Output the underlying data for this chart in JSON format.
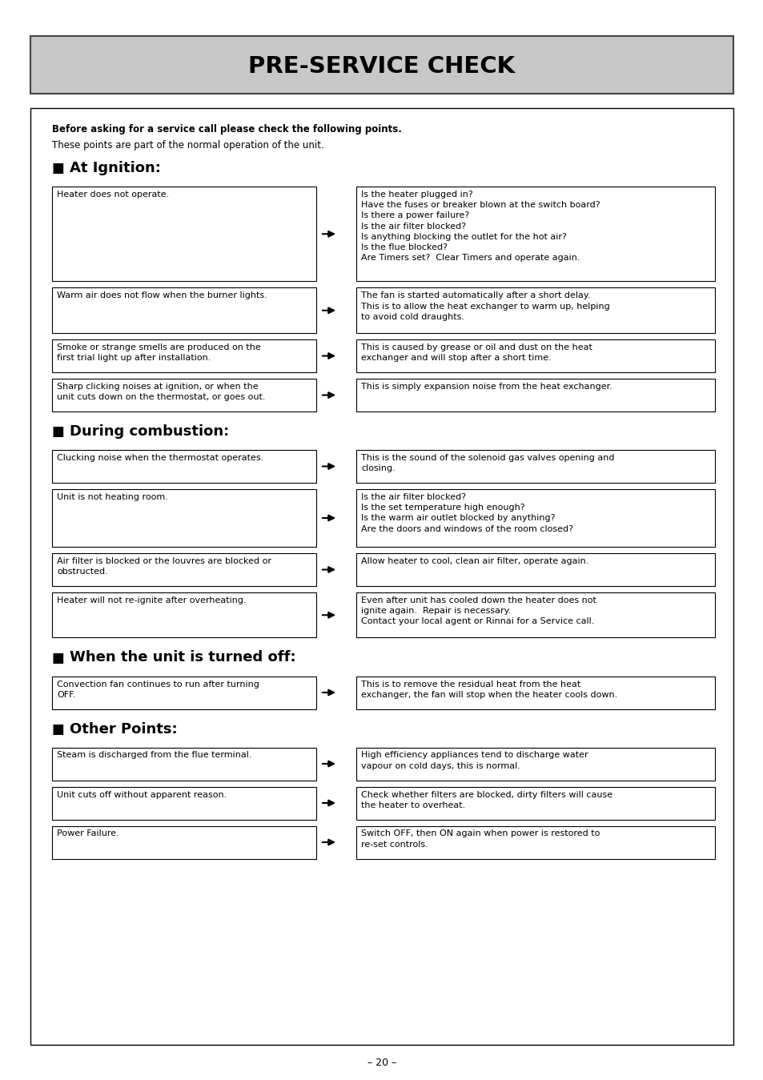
{
  "title": "PRE-SERVICE CHECK",
  "title_bg": "#c8c8c8",
  "page_bg": "#ffffff",
  "intro_bold": "Before asking for a service call please check the following points.",
  "intro_normal": "These points are part of the normal operation of the unit.",
  "sections": [
    {
      "heading": "At Ignition:",
      "rows": [
        {
          "left": "Heater does not operate.",
          "right": "Is the heater plugged in?\nHave the fuses or breaker blown at the switch board?\nIs there a power failure?\nIs the air filter blocked?\nIs anything blocking the outlet for the hot air?\nIs the flue blocked?\nAre Timers set?  Clear Timers and operate again."
        },
        {
          "left": "Warm air does not flow when the burner lights.",
          "right": "The fan is started automatically after a short delay.\nThis is to allow the heat exchanger to warm up, helping\nto avoid cold draughts."
        },
        {
          "left": "Smoke or strange smells are produced on the\nfirst trial light up after installation.",
          "right": "This is caused by grease or oil and dust on the heat\nexchanger and will stop after a short time."
        },
        {
          "left": "Sharp clicking noises at ignition, or when the\nunit cuts down on the thermostat, or goes out.",
          "right": "This is simply expansion noise from the heat exchanger."
        }
      ]
    },
    {
      "heading": "During combustion:",
      "rows": [
        {
          "left": "Clucking noise when the thermostat operates.",
          "right": "This is the sound of the solenoid gas valves opening and\nclosing."
        },
        {
          "left": "Unit is not heating room.",
          "right": "Is the air filter blocked?\nIs the set temperature high enough?\nIs the warm air outlet blocked by anything?\nAre the doors and windows of the room closed?"
        },
        {
          "left": "Air filter is blocked or the louvres are blocked or\nobstructed.",
          "right": "Allow heater to cool, clean air filter, operate again."
        },
        {
          "left": "Heater will not re-ignite after overheating.",
          "right": "Even after unit has cooled down the heater does not\nignite again.  Repair is necessary.\nContact your local agent or Rinnai for a Service call."
        }
      ]
    },
    {
      "heading": "When the unit is turned off:",
      "rows": [
        {
          "left": "Convection fan continues to run after turning\nOFF.",
          "right": "This is to remove the residual heat from the heat\nexchanger, the fan will stop when the heater cools down."
        }
      ]
    },
    {
      "heading": "Other Points:",
      "rows": [
        {
          "left": "Steam is discharged from the flue terminal.",
          "right": "High efficiency appliances tend to discharge water\nvapour on cold days, this is normal."
        },
        {
          "left": "Unit cuts off without apparent reason.",
          "right": "Check whether filters are blocked, dirty filters will cause\nthe heater to overheat."
        },
        {
          "left": "Power Failure.",
          "right": "Switch OFF, then ON again when power is restored to\nre-set controls."
        }
      ]
    }
  ],
  "footer": "– 20 –"
}
